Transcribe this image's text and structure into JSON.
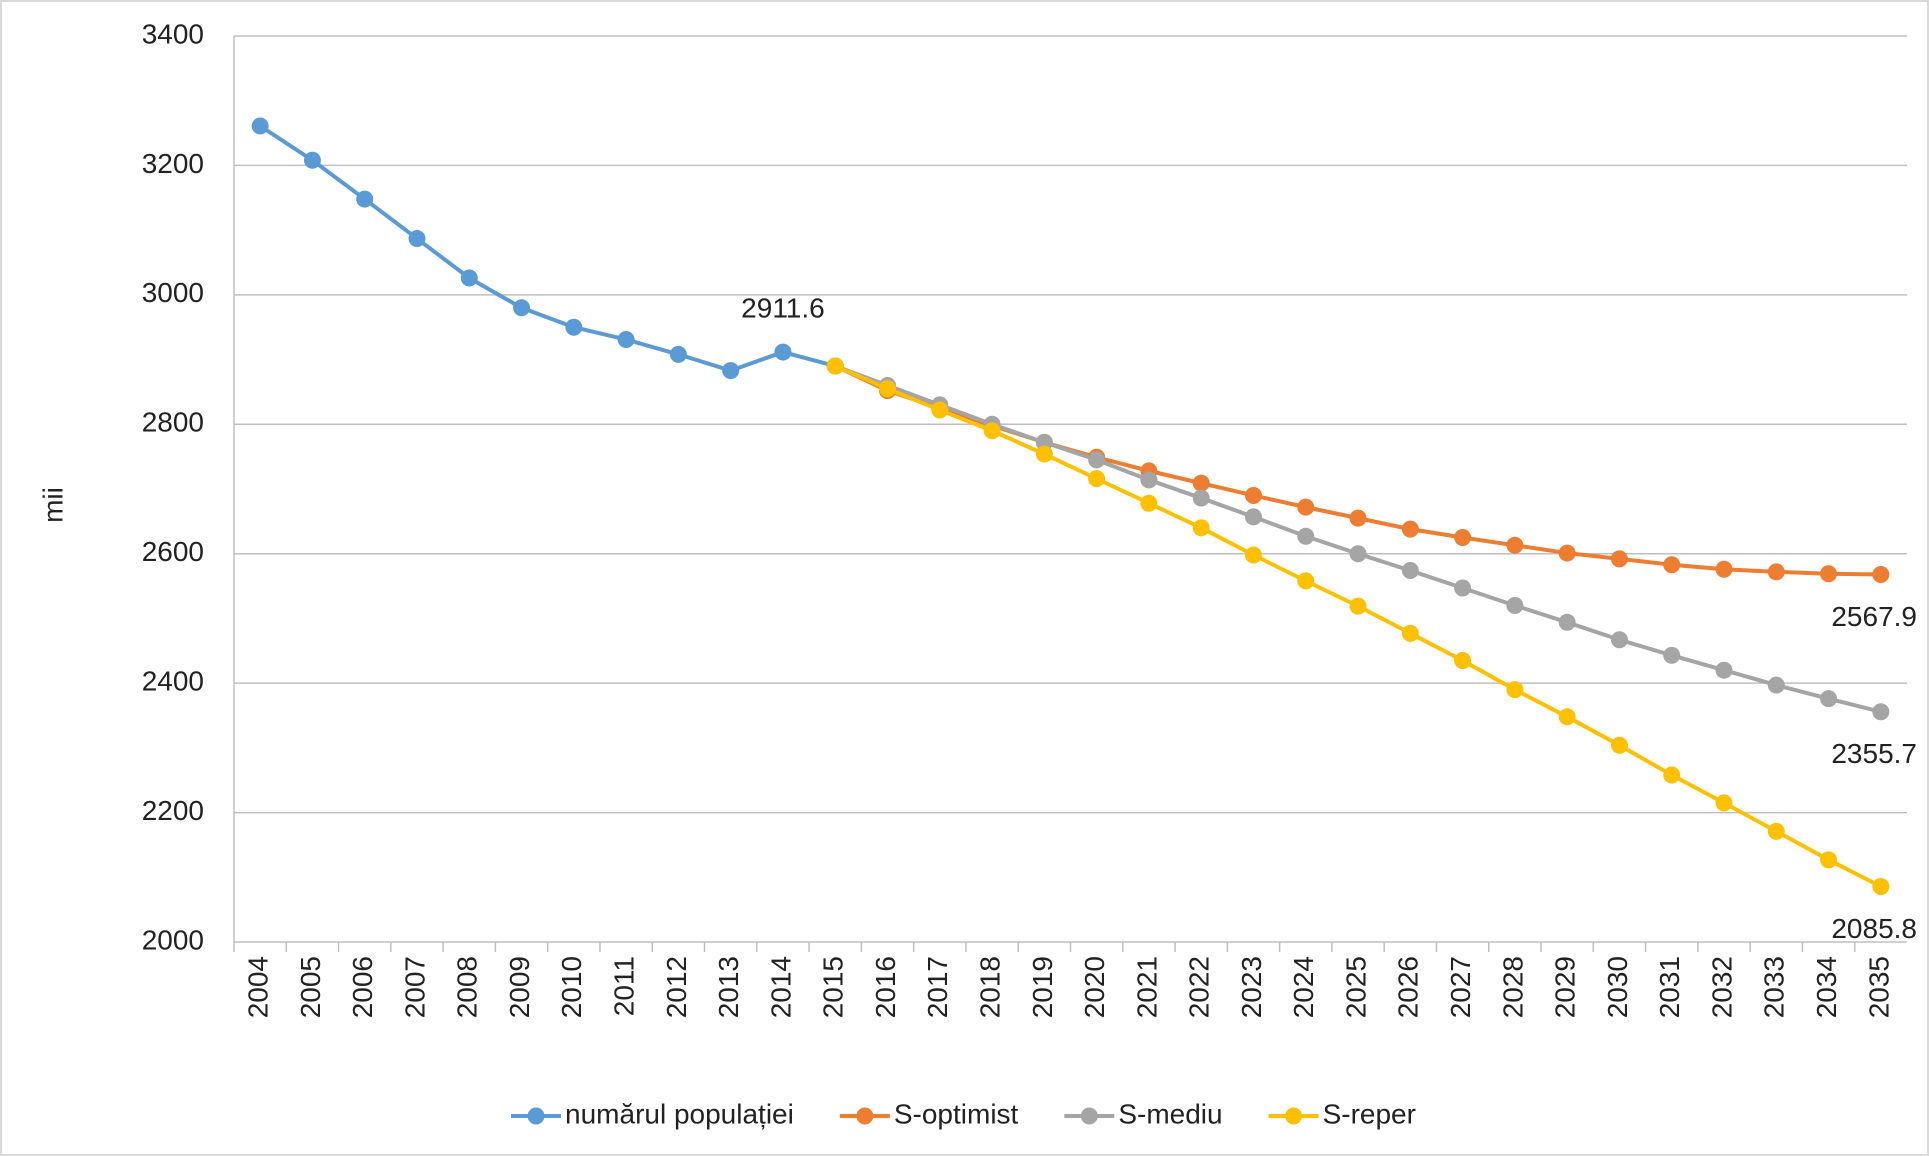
{
  "chart_data": {
    "type": "line",
    "y_label": "mii",
    "categories": [
      "2004",
      "2005",
      "2006",
      "2007",
      "2008",
      "2009",
      "2010",
      "2011",
      "2012",
      "2013",
      "2014",
      "2015",
      "2016",
      "2017",
      "2018",
      "2019",
      "2020",
      "2021",
      "2022",
      "2023",
      "2024",
      "2025",
      "2026",
      "2027",
      "2028",
      "2029",
      "2030",
      "2031",
      "2032",
      "2033",
      "2034",
      "2035"
    ],
    "series": [
      {
        "name": "numărul populației",
        "color": "#5b9bd5",
        "labels_at": [
          10
        ],
        "values": [
          3261,
          3208,
          3148,
          3087,
          3026,
          2980,
          2950,
          2931,
          2908,
          2883,
          2911.6,
          2890,
          null,
          null,
          null,
          null,
          null,
          null,
          null,
          null,
          null,
          null,
          null,
          null,
          null,
          null,
          null,
          null,
          null,
          null,
          null,
          null
        ]
      },
      {
        "name": "S-optimist",
        "color": "#ed7d31",
        "labels_at": [
          31
        ],
        "values": [
          null,
          null,
          null,
          null,
          null,
          null,
          null,
          null,
          null,
          null,
          null,
          2890,
          2852,
          2825,
          2798,
          2772,
          2749,
          2728,
          2709,
          2690,
          2672,
          2655,
          2638,
          2625,
          2613,
          2601,
          2592,
          2583,
          2576,
          2572,
          2569,
          2567.9
        ]
      },
      {
        "name": "S-mediu",
        "color": "#a5a5a5",
        "labels_at": [
          31
        ],
        "values": [
          null,
          null,
          null,
          null,
          null,
          null,
          null,
          null,
          null,
          null,
          null,
          2890,
          2860,
          2830,
          2800,
          2772,
          2745,
          2714,
          2686,
          2657,
          2627,
          2600,
          2574,
          2547,
          2520,
          2494,
          2467,
          2443,
          2420,
          2397,
          2376,
          2355.7
        ]
      },
      {
        "name": "S-reper",
        "color": "#ffc000",
        "labels_at": [
          31
        ],
        "values": [
          null,
          null,
          null,
          null,
          null,
          null,
          null,
          null,
          null,
          null,
          null,
          2890,
          2855,
          2822,
          2790,
          2754,
          2716,
          2678,
          2640,
          2598,
          2558,
          2519,
          2477,
          2435,
          2390,
          2348,
          2304,
          2258,
          2215,
          2171,
          2127,
          2085.8
        ]
      }
    ],
    "ylim": [
      2000,
      3400
    ],
    "yticks": [
      2000,
      2200,
      2400,
      2600,
      2800,
      3000,
      3200,
      3400
    ],
    "grid": true
  }
}
